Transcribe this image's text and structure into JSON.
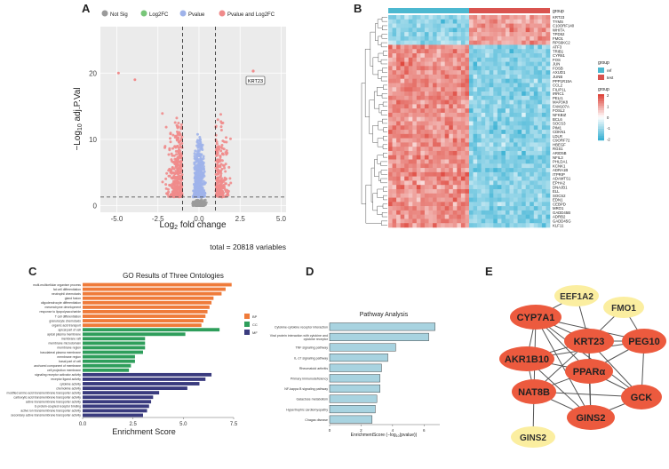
{
  "panels": {
    "a": "A",
    "b": "B",
    "c": "C",
    "d": "D",
    "e": "E"
  },
  "chart_data": [
    {
      "panel": "A",
      "type": "scatter",
      "title": "",
      "xlabel": "Log2 fold change",
      "ylabel": "-Log10 adj.P.Val",
      "xlim": [
        -6,
        5.3
      ],
      "ylim": [
        -1,
        27
      ],
      "xticks": [
        "-5.0",
        "-2.5",
        "0.0",
        "2.5",
        "5.0"
      ],
      "yticks": [
        "0",
        "10",
        "20"
      ],
      "fc_threshold": [
        -1,
        1
      ],
      "p_threshold": 1.3,
      "legend": [
        {
          "label": "Not Sig",
          "color": "#9a9a9a"
        },
        {
          "label": "Log2FC",
          "color": "#78c679"
        },
        {
          "label": "Pvalue",
          "color": "#9fb3ea"
        },
        {
          "label": "Pvalue and Log2FC",
          "color": "#f08b8b"
        }
      ],
      "labeled_point": {
        "label": "KRT23",
        "x": 3.3,
        "y": 20.3
      },
      "caption": "total = 20818 variables"
    },
    {
      "panel": "B",
      "type": "heatmap",
      "annotation_title": "group",
      "groups": [
        {
          "label": "ref",
          "color": "#4cb8d0"
        },
        {
          "label": "test",
          "color": "#d9534f"
        }
      ],
      "scale_title": "group",
      "scale_ticks": [
        "2",
        "1",
        "0",
        "-1",
        "-2"
      ],
      "genes": [
        "KRT23",
        "TYMS",
        "C10ORF140",
        "WHITA",
        "TPD52",
        "FMO1",
        "RPS6KC2",
        "ATF3",
        "TRIB1",
        "CYR61",
        "FOS",
        "JUN",
        "FOSB",
        "AXUD1",
        "JUNB",
        "PPP1R15A",
        "CCL2",
        "FILIP1L",
        "IRRC1",
        "PELI1",
        "MAP3K8",
        "FAM107A",
        "FOSL2",
        "NFKBIZ",
        "BCL6",
        "SOCS3",
        "PIM1",
        "CDKN1",
        "LDLR",
        "C9ORF72",
        "HBEGF",
        "RGS1",
        "ARID5B",
        "NFIL3",
        "PHLDA1",
        "KCNK1",
        "ADRA1B",
        "ITPRIP",
        "ADAMTS1",
        "EPHA2",
        "DNAJB1",
        "ELL",
        "SOCS2",
        "EDN1",
        "CEBPD",
        "MRO1",
        "GADD45B",
        "ADRB2",
        "GADD45G",
        "KLF11"
      ]
    },
    {
      "panel": "C",
      "type": "bar",
      "title": "GO Results of Three Ontologies",
      "xlabel": "Enrichment Score",
      "xlim": [
        0,
        7.5
      ],
      "xticks": [
        "0.0",
        "2.5",
        "5.0",
        "7.5"
      ],
      "legend": [
        {
          "label": "BP",
          "color": "#ef7b3a"
        },
        {
          "label": "CC",
          "color": "#2e9e5b"
        },
        {
          "label": "MF",
          "color": "#3a3b7e"
        }
      ],
      "categories": [
        "multi-multicellular organism process",
        "fat cell differentiation",
        "neutrophil chemotaxis",
        "gland fusion",
        "oligodendrocyte differentiation",
        "mesenchyme development",
        "response to lipopolysaccharide",
        "T cell differentiation",
        "granulocyte chemotaxis",
        "organic acid transport",
        "apical part of cell",
        "apical plasma membrane",
        "membrane raft",
        "membrane microdomain",
        "membrane region",
        "basolateral plasma membrane",
        "membrane region",
        "basal part of cell",
        "anchored component of membrane",
        "cell projection membrane",
        "signaling receptor activator activity",
        "receptor ligand activity",
        "cytokine activity",
        "chemokine activity",
        "modified amino acid transmembrane transporter activity",
        "carboxylic acid transmembrane transporter activity",
        "active transmembrane transporter activity",
        "G protein-coupled receptor binding",
        "active ion transmembrane transporter activity",
        "secondary active transmembrane transporter activity"
      ],
      "values": [
        7.4,
        7.1,
        6.9,
        6.5,
        6.4,
        6.3,
        6.2,
        6.1,
        6.0,
        5.9,
        6.8,
        5.1,
        3.1,
        3.1,
        3.1,
        3.0,
        2.6,
        2.6,
        2.4,
        2.3,
        6.4,
        6.1,
        5.8,
        5.2,
        3.8,
        3.5,
        3.4,
        3.3,
        3.2,
        3.0
      ],
      "ontology": [
        "BP",
        "BP",
        "BP",
        "BP",
        "BP",
        "BP",
        "BP",
        "BP",
        "BP",
        "BP",
        "CC",
        "CC",
        "CC",
        "CC",
        "CC",
        "CC",
        "CC",
        "CC",
        "CC",
        "CC",
        "MF",
        "MF",
        "MF",
        "MF",
        "MF",
        "MF",
        "MF",
        "MF",
        "MF",
        "MF"
      ]
    },
    {
      "panel": "D",
      "type": "bar",
      "title": "Pathway Analysis",
      "xlabel": "EnrichmentScore (-log10(pvalue))",
      "xlim": [
        0,
        7
      ],
      "xticks": [
        "0",
        "2",
        "4",
        "6"
      ],
      "categories": [
        "Cytokine-cytokine receptor interaction",
        "Viral protein interaction with cytokine and cytokine receptor",
        "TNF signaling pathway",
        "IL-17 signaling pathway",
        "Rheumatoid arthritis",
        "Primary immunodeficiency",
        "NF-kappa B signaling pathway",
        "Galactose metabolism",
        "Hypertrophic cardiomyopathy",
        "Chagas disease"
      ],
      "values": [
        6.7,
        6.3,
        4.2,
        3.7,
        3.3,
        3.2,
        3.2,
        3.0,
        2.9,
        2.7
      ],
      "bar_color": "#a8d3e0"
    },
    {
      "panel": "E",
      "type": "network",
      "nodes": [
        {
          "id": "EEF1A2",
          "color": "#fbeea0"
        },
        {
          "id": "FMO1",
          "color": "#fbeea0"
        },
        {
          "id": "CYP7A1",
          "color": "#ec5a3e"
        },
        {
          "id": "KRT23",
          "color": "#ec5a3e"
        },
        {
          "id": "PEG10",
          "color": "#ec5a3e"
        },
        {
          "id": "AKR1B10",
          "color": "#ec5a3e"
        },
        {
          "id": "PPARα",
          "color": "#ec5a3e"
        },
        {
          "id": "NAT8B",
          "color": "#ec5a3e"
        },
        {
          "id": "GCK",
          "color": "#ec5a3e"
        },
        {
          "id": "GINS2",
          "color": "#fbeea0",
          "key": "GINS2_light"
        },
        {
          "id": "GINS2",
          "color": "#ec5a3e",
          "key": "GINS2_red"
        }
      ],
      "edges": [
        [
          "CYP7A1",
          "KRT23"
        ],
        [
          "CYP7A1",
          "PEG10"
        ],
        [
          "CYP7A1",
          "AKR1B10"
        ],
        [
          "CYP7A1",
          "PPARα"
        ],
        [
          "CYP7A1",
          "NAT8B"
        ],
        [
          "CYP7A1",
          "GCK"
        ],
        [
          "CYP7A1",
          "GINS2_red"
        ],
        [
          "CYP7A1",
          "EEF1A2"
        ],
        [
          "KRT23",
          "PEG10"
        ],
        [
          "KRT23",
          "AKR1B10"
        ],
        [
          "KRT23",
          "PPARα"
        ],
        [
          "KRT23",
          "NAT8B"
        ],
        [
          "KRT23",
          "GCK"
        ],
        [
          "KRT23",
          "GINS2_red"
        ],
        [
          "PEG10",
          "PPARα"
        ],
        [
          "PEG10",
          "GCK"
        ],
        [
          "PEG10",
          "FMO1"
        ],
        [
          "PEG10",
          "AKR1B10"
        ],
        [
          "AKR1B10",
          "PPARα"
        ],
        [
          "AKR1B10",
          "NAT8B"
        ],
        [
          "AKR1B10",
          "GINS2_red"
        ],
        [
          "PPARα",
          "NAT8B"
        ],
        [
          "PPARα",
          "GCK"
        ],
        [
          "PPARα",
          "GINS2_red"
        ],
        [
          "NAT8B",
          "GINS2_red"
        ],
        [
          "NAT8B",
          "GINS2_light"
        ],
        [
          "GCK",
          "GINS2_red"
        ],
        [
          "EEF1A2",
          "KRT23"
        ],
        [
          "FMO1",
          "KRT23"
        ],
        [
          "NAT8B",
          "GCK"
        ]
      ]
    }
  ]
}
